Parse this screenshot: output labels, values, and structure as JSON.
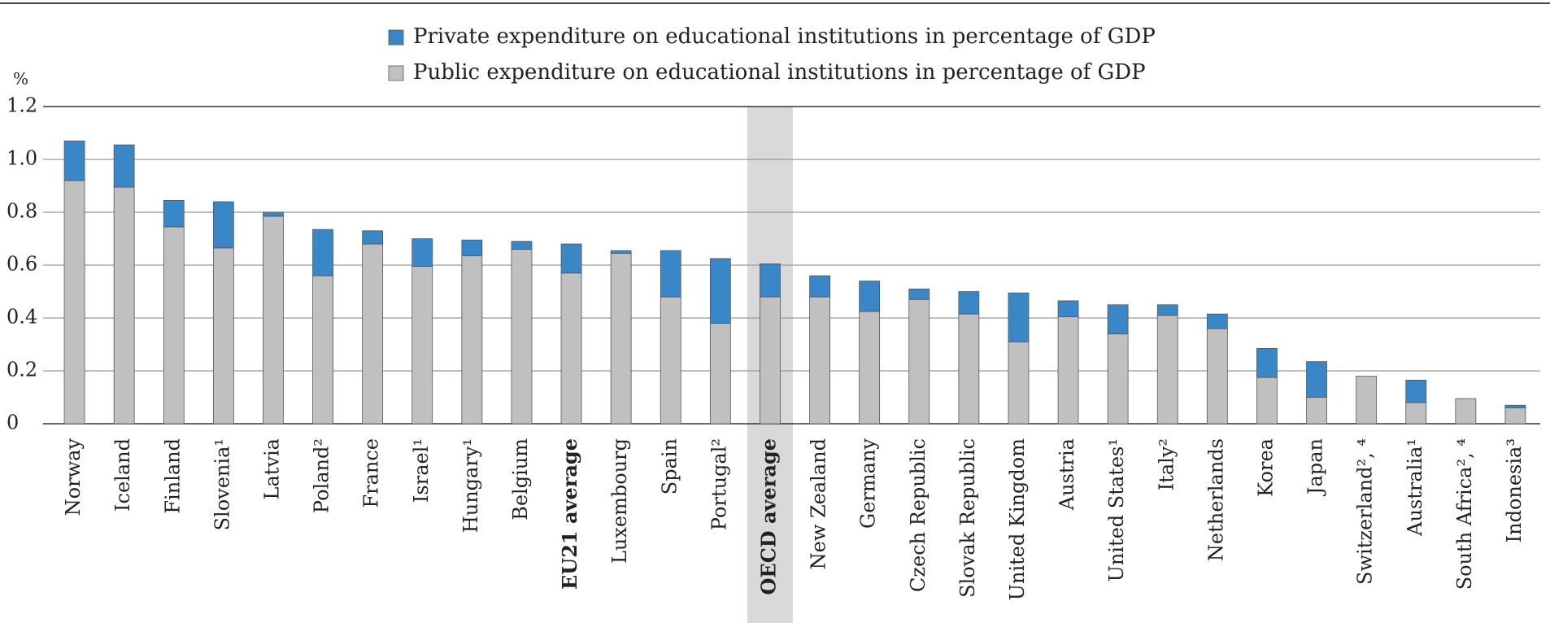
{
  "chart_data": {
    "type": "stacked-bar",
    "y_label": "%",
    "categories": [
      "Norway",
      "Iceland",
      "Finland",
      "Slovenia¹",
      "Latvia",
      "Poland²",
      "France",
      "Israel¹",
      "Hungary¹",
      "Belgium",
      "EU21 average",
      "Luxembourg",
      "Spain",
      "Portugal²",
      "OECD average",
      "New Zealand",
      "Germany",
      "Czech Republic",
      "Slovak Republic",
      "United Kingdom",
      "Austria",
      "United States¹",
      "Italy²",
      "Netherlands",
      "Korea",
      "Japan",
      "Switzerland², ⁴",
      "Australia¹",
      "South Africa², ⁴",
      "Indonesia³"
    ],
    "series": [
      {
        "name": "Public expenditure on educational institutions in percentage of GDP",
        "color": "#c0c0c0",
        "values": [
          0.92,
          0.895,
          0.745,
          0.665,
          0.785,
          0.56,
          0.68,
          0.595,
          0.635,
          0.66,
          0.57,
          0.645,
          0.48,
          0.38,
          0.48,
          0.48,
          0.425,
          0.47,
          0.415,
          0.31,
          0.405,
          0.34,
          0.41,
          0.36,
          0.175,
          0.1,
          0.18,
          0.08,
          0.095,
          0.06
        ]
      },
      {
        "name": "Private expenditure on educational institutions in percentage of GDP",
        "color": "#3a87c8",
        "values": [
          0.15,
          0.16,
          0.1,
          0.175,
          0.015,
          0.175,
          0.05,
          0.105,
          0.06,
          0.03,
          0.11,
          0.01,
          0.175,
          0.245,
          0.125,
          0.08,
          0.115,
          0.04,
          0.085,
          0.185,
          0.06,
          0.11,
          0.04,
          0.055,
          0.11,
          0.135,
          null,
          0.085,
          null,
          0.01
        ]
      }
    ],
    "ylim": [
      0,
      1.2
    ],
    "yticks": [
      0,
      0.2,
      0.4,
      0.6,
      0.8,
      {
        "value": 1,
        "label": "1.0"
      },
      1.2
    ],
    "grid": true,
    "bold_categories": [
      10,
      14
    ],
    "highlight_category": 14,
    "legend_order": "reversed"
  }
}
